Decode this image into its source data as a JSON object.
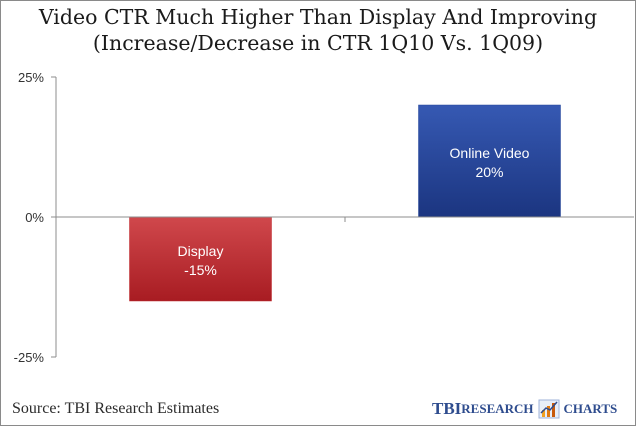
{
  "chart_data": {
    "type": "bar",
    "title": "Video CTR Much Higher Than Display And Improving",
    "subtitle": "(Increase/Decrease in CTR 1Q10 Vs. 1Q09)",
    "categories": [
      "Display",
      "Online Video"
    ],
    "values": [
      -15,
      20
    ],
    "value_labels": [
      "-15%",
      "20%"
    ],
    "colors": [
      "#c0282c",
      "#23449a"
    ],
    "ylim": [
      -25,
      25
    ],
    "yticks": [
      25,
      0,
      -25
    ],
    "ytick_labels": [
      "25%",
      "0%",
      "-25%"
    ],
    "grid": false,
    "legend": "none"
  },
  "footer": {
    "source": "Source: TBI Research Estimates",
    "logo_tbi": "TBI",
    "logo_research": "Research",
    "logo_charts": "Charts"
  }
}
